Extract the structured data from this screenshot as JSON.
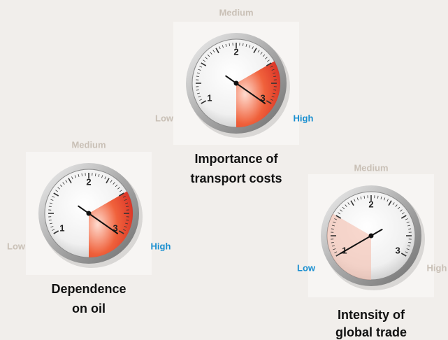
{
  "gauges": [
    {
      "title": [
        "Importance of",
        "transport costs"
      ],
      "labels": {
        "low": "Low",
        "medium": "Medium",
        "high": "High"
      },
      "dial_numbers": [
        "1",
        "2",
        "3"
      ],
      "active": "high"
    },
    {
      "title": [
        "Dependence",
        "on oil"
      ],
      "labels": {
        "low": "Low",
        "medium": "Medium",
        "high": "High"
      },
      "dial_numbers": [
        "1",
        "2",
        "3"
      ],
      "active": "high"
    },
    {
      "title": [
        "Intensity of",
        "global trade"
      ],
      "labels": {
        "low": "Low",
        "medium": "Medium",
        "high": "High"
      },
      "dial_numbers": [
        "1",
        "2",
        "3"
      ],
      "active": "low"
    }
  ]
}
